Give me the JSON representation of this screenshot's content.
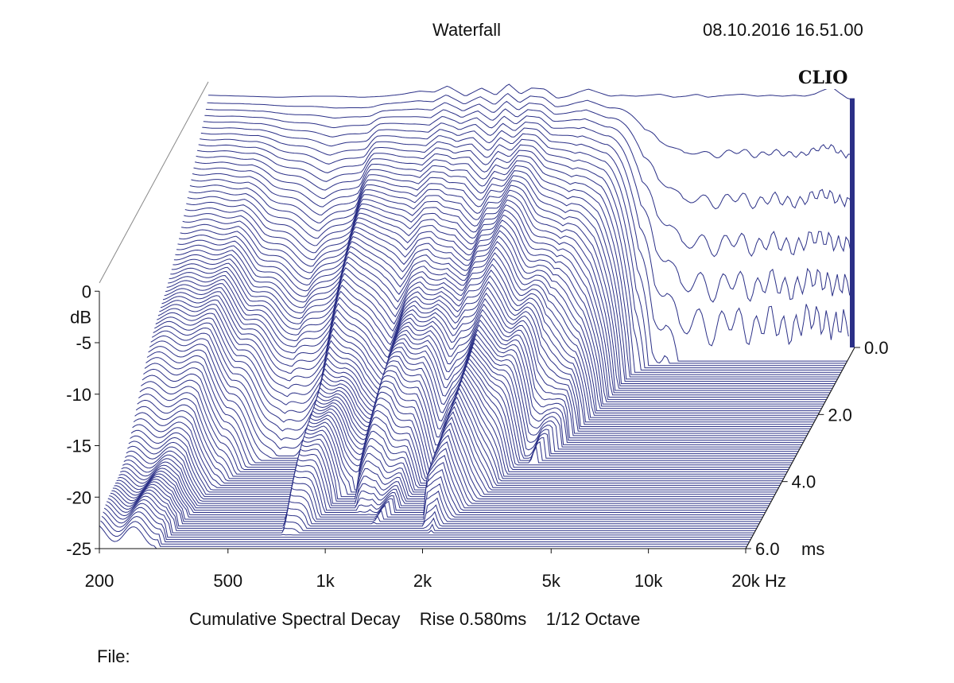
{
  "header": {
    "title": "Waterfall",
    "timestamp": "08.10.2016 16.51.00"
  },
  "footer": {
    "subtitle_main": "Cumulative Spectral Decay",
    "subtitle_rise": "Rise 0.580ms",
    "subtitle_res": "1/12 Octave",
    "file_label": "File:"
  },
  "logo_text": "CLIO",
  "colors": {
    "trace": "#2b3087",
    "axis": "#888888",
    "text": "#111111"
  },
  "chart_data": {
    "type": "area",
    "title": "Waterfall",
    "subtitle": "Cumulative Spectral Decay   Rise 0.580ms   1/12 Octave",
    "x_scale": "log",
    "xlim": [
      200,
      20000
    ],
    "x_ticks": [
      {
        "value": 200,
        "label": "200"
      },
      {
        "value": 500,
        "label": "500"
      },
      {
        "value": 1000,
        "label": "1k"
      },
      {
        "value": 2000,
        "label": "2k"
      },
      {
        "value": 5000,
        "label": "5k"
      },
      {
        "value": 10000,
        "label": "10k"
      },
      {
        "value": 20000,
        "label": "20k"
      }
    ],
    "x_unit": "Hz",
    "ylim": [
      -25,
      0
    ],
    "y_ticks": [
      {
        "value": 0,
        "label": "0"
      },
      {
        "value": -5,
        "label": "-5"
      },
      {
        "value": -10,
        "label": "-10"
      },
      {
        "value": -15,
        "label": "-15"
      },
      {
        "value": -20,
        "label": "-20"
      },
      {
        "value": -25,
        "label": "-25"
      }
    ],
    "y_unit": "dB",
    "zlim": [
      0,
      6.0
    ],
    "z_ticks": [
      {
        "value": 0,
        "label": "0.0"
      },
      {
        "value": 2,
        "label": "2.0"
      },
      {
        "value": 4,
        "label": "4.0"
      },
      {
        "value": 6,
        "label": "6.0"
      }
    ],
    "z_unit": "ms",
    "slices": 90,
    "initial_response": {
      "freq": [
        200,
        260,
        330,
        420,
        500,
        600,
        700,
        800,
        900,
        1000,
        1100,
        1250,
        1400,
        1550,
        1700,
        1850,
        2000,
        2200,
        2400,
        2600,
        2800,
        3000,
        3200,
        3500,
        3800,
        4200,
        4600,
        5000,
        5500,
        6000,
        6500,
        7000,
        8000,
        9000,
        10000,
        11000,
        12000,
        13000,
        14000,
        15000,
        16000,
        17000,
        18000,
        19000,
        20000
      ],
      "db": [
        -0.5,
        -0.6,
        -0.7,
        -0.6,
        -0.6,
        -0.7,
        -0.6,
        -0.4,
        -0.1,
        -0.2,
        0.4,
        -0.6,
        0.2,
        -0.5,
        0.6,
        -0.4,
        0.2,
        0.1,
        -0.8,
        -0.6,
        -0.2,
        0.1,
        -0.2,
        -0.6,
        -0.5,
        -0.6,
        -0.5,
        -0.4,
        -0.7,
        -0.6,
        -0.4,
        -0.7,
        -0.5,
        -0.4,
        -0.6,
        -0.5,
        -0.6,
        -0.5,
        -0.6,
        -0.4,
        0.0,
        0.3,
        -0.3,
        -0.8,
        -1.0
      ]
    },
    "decay_end_ms": {
      "freq": [
        200,
        300,
        350,
        500,
        650,
        700,
        800,
        900,
        1000,
        1100,
        1200,
        1400,
        1600,
        1800,
        2000,
        2300,
        2600,
        2900,
        3200,
        3600,
        4000,
        4300,
        4500,
        5000,
        5500,
        6000,
        7000,
        10000,
        20000
      ],
      "ms": [
        6.0,
        6.0,
        4.5,
        3.2,
        4.0,
        6.0,
        5.5,
        4.5,
        4.2,
        5.0,
        5.5,
        5.0,
        4.0,
        5.0,
        6.0,
        5.0,
        4.5,
        3.5,
        3.5,
        3.0,
        2.0,
        1.2,
        0.8,
        0.5,
        0.5,
        0.4,
        0.4,
        0.4,
        0.4
      ]
    }
  }
}
